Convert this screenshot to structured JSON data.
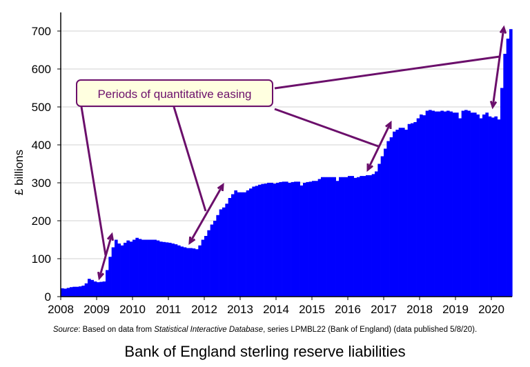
{
  "chart_data": {
    "type": "bar",
    "title": "Bank of England sterling reserve liabilities",
    "ylabel": "£ billions",
    "xlabel": "",
    "ylim": [
      0,
      700
    ],
    "yticks": [
      "0",
      "100",
      "200",
      "300",
      "400",
      "500",
      "600",
      "700"
    ],
    "xticks": [
      "2008",
      "2009",
      "2010",
      "2011",
      "2012",
      "2013",
      "2014",
      "2015",
      "2016",
      "2017",
      "2018",
      "2019",
      "2020"
    ],
    "grid": true,
    "frequency": "monthly",
    "start": "2008-01",
    "color": "#0000ff",
    "values": [
      22,
      21,
      23,
      25,
      26,
      26,
      27,
      29,
      35,
      47,
      44,
      40,
      38,
      39,
      40,
      70,
      105,
      130,
      150,
      140,
      135,
      142,
      148,
      145,
      150,
      155,
      152,
      150,
      150,
      150,
      150,
      150,
      148,
      145,
      144,
      143,
      142,
      140,
      138,
      135,
      132,
      130,
      128,
      128,
      127,
      125,
      135,
      150,
      160,
      175,
      190,
      200,
      215,
      230,
      235,
      245,
      260,
      270,
      280,
      275,
      275,
      275,
      280,
      285,
      290,
      292,
      295,
      297,
      298,
      300,
      300,
      298,
      300,
      302,
      303,
      303,
      300,
      302,
      303,
      303,
      293,
      300,
      302,
      303,
      305,
      305,
      310,
      315,
      315,
      315,
      315,
      315,
      305,
      315,
      315,
      315,
      318,
      318,
      313,
      315,
      318,
      318,
      320,
      320,
      323,
      330,
      350,
      370,
      390,
      410,
      420,
      435,
      440,
      445,
      445,
      440,
      455,
      457,
      460,
      470,
      480,
      478,
      490,
      492,
      490,
      488,
      488,
      490,
      488,
      490,
      488,
      485,
      485,
      470,
      490,
      492,
      490,
      485,
      485,
      480,
      470,
      480,
      485,
      475,
      472,
      475,
      467,
      550,
      640,
      680,
      705
    ],
    "annotation": "Periods of quantitative easing",
    "annotation_color": "#6b0f6b",
    "source": {
      "label": "Source",
      "pre": ": Based on data from ",
      "italic": "Statistical Interactive Database",
      "post": ", series LPMBL22 (Bank of England) (data published 5/8/20)."
    }
  }
}
